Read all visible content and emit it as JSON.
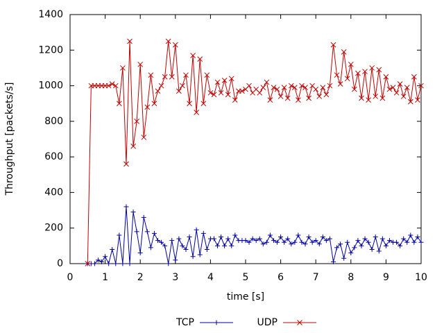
{
  "chart_data": {
    "type": "line",
    "xlabel": "time [s]",
    "ylabel": "Throughput [packets/s]",
    "x": [
      0.5,
      0.6,
      0.7,
      0.8,
      0.9,
      1.0,
      1.1,
      1.2,
      1.3,
      1.4,
      1.5,
      1.6,
      1.7,
      1.8,
      1.9,
      2.0,
      2.1,
      2.2,
      2.3,
      2.4,
      2.5,
      2.6,
      2.7,
      2.8,
      2.9,
      3.0,
      3.1,
      3.2,
      3.3,
      3.4,
      3.5,
      3.6,
      3.7,
      3.8,
      3.9,
      4.0,
      4.1,
      4.2,
      4.3,
      4.4,
      4.5,
      4.6,
      4.7,
      4.8,
      4.9,
      5.0,
      5.1,
      5.2,
      5.3,
      5.4,
      5.5,
      5.6,
      5.7,
      5.8,
      5.9,
      6.0,
      6.1,
      6.2,
      6.3,
      6.4,
      6.5,
      6.6,
      6.7,
      6.8,
      6.9,
      7.0,
      7.1,
      7.2,
      7.3,
      7.4,
      7.5,
      7.6,
      7.7,
      7.8,
      7.9,
      8.0,
      8.1,
      8.2,
      8.3,
      8.4,
      8.5,
      8.6,
      8.7,
      8.8,
      8.9,
      9.0,
      9.1,
      9.2,
      9.3,
      9.4,
      9.5,
      9.6,
      9.7,
      9.8,
      9.9,
      10.0
    ],
    "series": [
      {
        "name": "TCP",
        "color": "#0000a0",
        "marker": "+",
        "values": [
          0,
          0,
          0,
          20,
          10,
          40,
          0,
          80,
          0,
          160,
          0,
          320,
          0,
          290,
          180,
          60,
          260,
          180,
          90,
          170,
          130,
          120,
          100,
          0,
          130,
          20,
          140,
          100,
          80,
          150,
          40,
          190,
          50,
          170,
          80,
          140,
          140,
          100,
          150,
          100,
          140,
          100,
          160,
          130,
          130,
          130,
          120,
          140,
          130,
          140,
          110,
          120,
          160,
          130,
          120,
          150,
          120,
          140,
          110,
          120,
          160,
          120,
          110,
          150,
          120,
          130,
          110,
          150,
          130,
          140,
          10,
          90,
          110,
          30,
          120,
          60,
          90,
          130,
          100,
          140,
          120,
          80,
          150,
          70,
          140,
          100,
          130,
          120,
          120,
          100,
          140,
          120,
          160,
          120,
          150,
          120
        ]
      },
      {
        "name": "UDP",
        "color": "#c00000",
        "marker": "x",
        "values": [
          0,
          1000,
          1000,
          1000,
          1000,
          1000,
          1000,
          1010,
          1000,
          900,
          1100,
          560,
          1250,
          660,
          800,
          1120,
          710,
          880,
          1060,
          900,
          970,
          1000,
          1050,
          1250,
          1050,
          1230,
          970,
          1000,
          1060,
          900,
          1170,
          850,
          1150,
          900,
          1060,
          960,
          950,
          1020,
          960,
          1030,
          950,
          1040,
          920,
          970,
          970,
          980,
          1000,
          960,
          980,
          960,
          990,
          1020,
          920,
          990,
          980,
          940,
          990,
          930,
          1000,
          990,
          920,
          1000,
          990,
          930,
          1000,
          980,
          940,
          990,
          950,
          1000,
          1230,
          1060,
          1010,
          1190,
          1040,
          1120,
          980,
          1070,
          930,
          1080,
          920,
          1100,
          940,
          1090,
          930,
          1050,
          980,
          990,
          960,
          1010,
          940,
          990,
          910,
          1050,
          920,
          1000
        ]
      }
    ],
    "xlim": [
      0,
      10
    ],
    "xticks": [
      0,
      1,
      2,
      3,
      4,
      5,
      6,
      7,
      8,
      9,
      10
    ],
    "ylim": [
      0,
      1400
    ],
    "yticks": [
      0,
      200,
      400,
      600,
      800,
      1000,
      1200,
      1400
    ],
    "legend": "bottom"
  }
}
